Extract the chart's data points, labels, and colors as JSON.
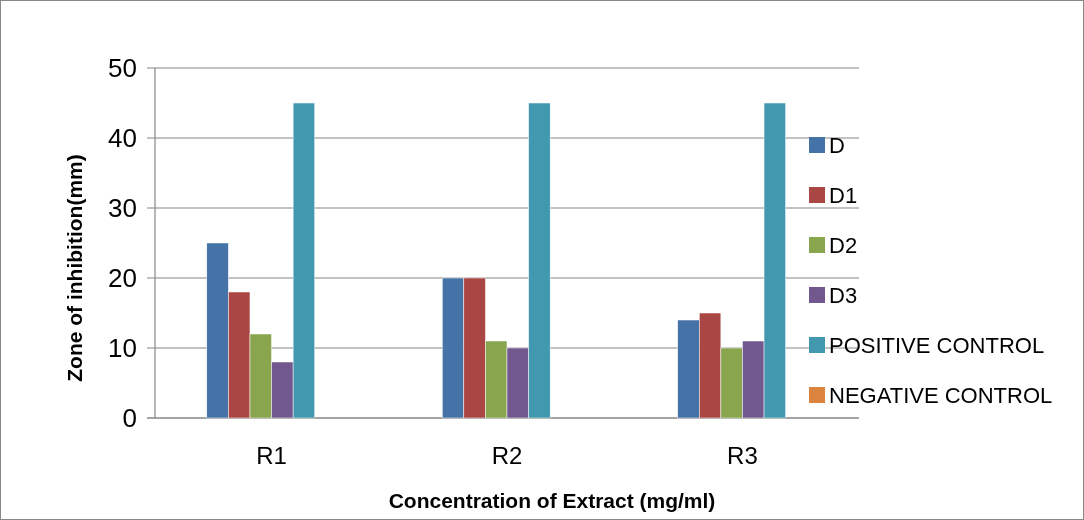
{
  "chart_data": {
    "type": "bar",
    "xlabel": "Concentration of Extract (mg/ml)",
    "ylabel": "Zone of inhibition(mm)",
    "categories": [
      "R1",
      "R2",
      "R3"
    ],
    "series": [
      {
        "name": "D",
        "color": "#4572a7",
        "values": [
          25,
          20,
          14
        ]
      },
      {
        "name": "D1",
        "color": "#aa4643",
        "values": [
          18,
          20,
          15
        ]
      },
      {
        "name": "D2",
        "color": "#89a54e",
        "values": [
          12,
          11,
          10
        ]
      },
      {
        "name": "D3",
        "color": "#71588f",
        "values": [
          8,
          10,
          11
        ]
      },
      {
        "name": "POSITIVE CONTROL",
        "color": "#4198af",
        "values": [
          45,
          45,
          45
        ]
      },
      {
        "name": "NEGATIVE CONTROL",
        "color": "#db843d",
        "values": [
          0,
          0,
          0
        ]
      }
    ],
    "ylim": [
      0,
      50
    ],
    "yticks": [
      0,
      10,
      20,
      30,
      40,
      50
    ],
    "grid": "y",
    "legend": "right"
  }
}
